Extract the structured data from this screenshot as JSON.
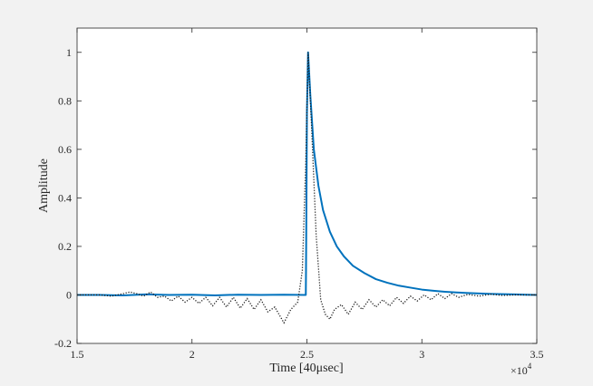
{
  "chart_data": {
    "type": "line",
    "xlabel": "Time [40μsec]",
    "ylabel": "Amplitude",
    "x_exponent_label": "×10",
    "x_exponent_power": "4",
    "xlim": [
      15000,
      35000
    ],
    "ylim": [
      -0.2,
      1.1
    ],
    "x_ticks": [
      15000,
      20000,
      25000,
      30000,
      35000
    ],
    "x_tick_labels": [
      "1.5",
      "2",
      "2.5",
      "3",
      "3.5"
    ],
    "y_ticks": [
      -0.2,
      0,
      0.2,
      0.4,
      0.6,
      0.8,
      1
    ],
    "y_tick_labels": [
      "-0.2",
      "0",
      "0.2",
      "0.4",
      "0.6",
      "0.8",
      "1"
    ],
    "grid": false,
    "background": "#ffffff",
    "series": [
      {
        "style": "solid",
        "color": "#0072bd",
        "points": [
          [
            15000,
            0
          ],
          [
            16000,
            0.0
          ],
          [
            17000,
            -0.002
          ],
          [
            18000,
            0.002
          ],
          [
            19000,
            0.0
          ],
          [
            20000,
            0.001
          ],
          [
            21000,
            -0.002
          ],
          [
            22000,
            0.001
          ],
          [
            23000,
            0.0
          ],
          [
            24000,
            0.001
          ],
          [
            24900,
            0.0
          ],
          [
            24950,
            0.0
          ],
          [
            24951,
            0.002
          ],
          [
            24960,
            0.1
          ],
          [
            24980,
            0.4
          ],
          [
            25000,
            0.75
          ],
          [
            25050,
            1.0
          ],
          [
            25150,
            0.82
          ],
          [
            25300,
            0.6
          ],
          [
            25500,
            0.45
          ],
          [
            25700,
            0.35
          ],
          [
            26000,
            0.26
          ],
          [
            26300,
            0.2
          ],
          [
            26600,
            0.16
          ],
          [
            27000,
            0.12
          ],
          [
            27500,
            0.09
          ],
          [
            28000,
            0.065
          ],
          [
            28500,
            0.05
          ],
          [
            29000,
            0.038
          ],
          [
            29500,
            0.03
          ],
          [
            30000,
            0.022
          ],
          [
            30500,
            0.017
          ],
          [
            31000,
            0.013
          ],
          [
            31500,
            0.01
          ],
          [
            32000,
            0.008
          ],
          [
            32500,
            0.006
          ],
          [
            33000,
            0.004
          ],
          [
            33500,
            0.003
          ],
          [
            34000,
            0.002
          ],
          [
            34500,
            0.001
          ],
          [
            35000,
            0.0
          ]
        ]
      },
      {
        "style": "dotted",
        "color": "#1a1a1a",
        "points": [
          [
            15000,
            0
          ],
          [
            16000,
            0
          ],
          [
            16500,
            -0.005
          ],
          [
            17000,
            0.005
          ],
          [
            17300,
            0.012
          ],
          [
            17600,
            0.005
          ],
          [
            17900,
            -0.005
          ],
          [
            18200,
            0.012
          ],
          [
            18500,
            -0.01
          ],
          [
            18800,
            -0.005
          ],
          [
            19100,
            -0.025
          ],
          [
            19400,
            -0.005
          ],
          [
            19700,
            -0.03
          ],
          [
            20000,
            -0.01
          ],
          [
            20300,
            -0.035
          ],
          [
            20600,
            -0.01
          ],
          [
            20900,
            -0.045
          ],
          [
            21200,
            -0.01
          ],
          [
            21500,
            -0.05
          ],
          [
            21800,
            -0.01
          ],
          [
            22100,
            -0.055
          ],
          [
            22400,
            -0.015
          ],
          [
            22700,
            -0.06
          ],
          [
            23000,
            -0.02
          ],
          [
            23300,
            -0.07
          ],
          [
            23600,
            -0.05
          ],
          [
            24000,
            -0.115
          ],
          [
            24300,
            -0.06
          ],
          [
            24600,
            -0.03
          ],
          [
            24800,
            0.1
          ],
          [
            24950,
            0.55
          ],
          [
            25050,
            1.0
          ],
          [
            25200,
            0.7
          ],
          [
            25400,
            0.25
          ],
          [
            25600,
            -0.02
          ],
          [
            25800,
            -0.08
          ],
          [
            26000,
            -0.1
          ],
          [
            26200,
            -0.06
          ],
          [
            26500,
            -0.04
          ],
          [
            26800,
            -0.08
          ],
          [
            27100,
            -0.03
          ],
          [
            27400,
            -0.06
          ],
          [
            27700,
            -0.02
          ],
          [
            28000,
            -0.05
          ],
          [
            28300,
            -0.02
          ],
          [
            28600,
            -0.045
          ],
          [
            28900,
            -0.01
          ],
          [
            29200,
            -0.035
          ],
          [
            29500,
            -0.005
          ],
          [
            29800,
            -0.025
          ],
          [
            30100,
            0.0
          ],
          [
            30400,
            -0.02
          ],
          [
            30700,
            0.005
          ],
          [
            31000,
            -0.015
          ],
          [
            31300,
            0.005
          ],
          [
            31600,
            -0.01
          ],
          [
            32000,
            0.002
          ],
          [
            32500,
            -0.005
          ],
          [
            33000,
            0.003
          ],
          [
            33500,
            -0.002
          ],
          [
            34000,
            0.0
          ],
          [
            35000,
            0
          ]
        ]
      }
    ]
  }
}
